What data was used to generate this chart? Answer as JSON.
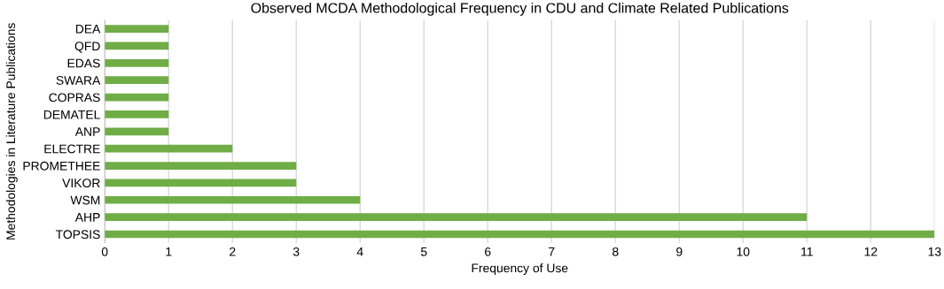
{
  "chart_data": {
    "type": "bar",
    "orientation": "horizontal",
    "title": "Observed MCDA Methodological Frequency in CDU and Climate Related Publications",
    "xlabel": "Frequency of Use",
    "ylabel": "Methodologies in Literature Publications",
    "categories": [
      "DEA",
      "QFD",
      "EDAS",
      "SWARA",
      "COPRAS",
      "DEMATEL",
      "ANP",
      "ELECTRE",
      "PROMETHEE",
      "VIKOR",
      "WSM",
      "AHP",
      "TOPSIS"
    ],
    "values": [
      1,
      1,
      1,
      1,
      1,
      1,
      1,
      2,
      3,
      3,
      4,
      11,
      13
    ],
    "color": "#70ad47",
    "xlim": [
      0,
      13
    ],
    "xticks": [
      0,
      1,
      2,
      3,
      4,
      5,
      6,
      7,
      8,
      9,
      10,
      11,
      12,
      13
    ],
    "grid": "x",
    "legend": false
  }
}
